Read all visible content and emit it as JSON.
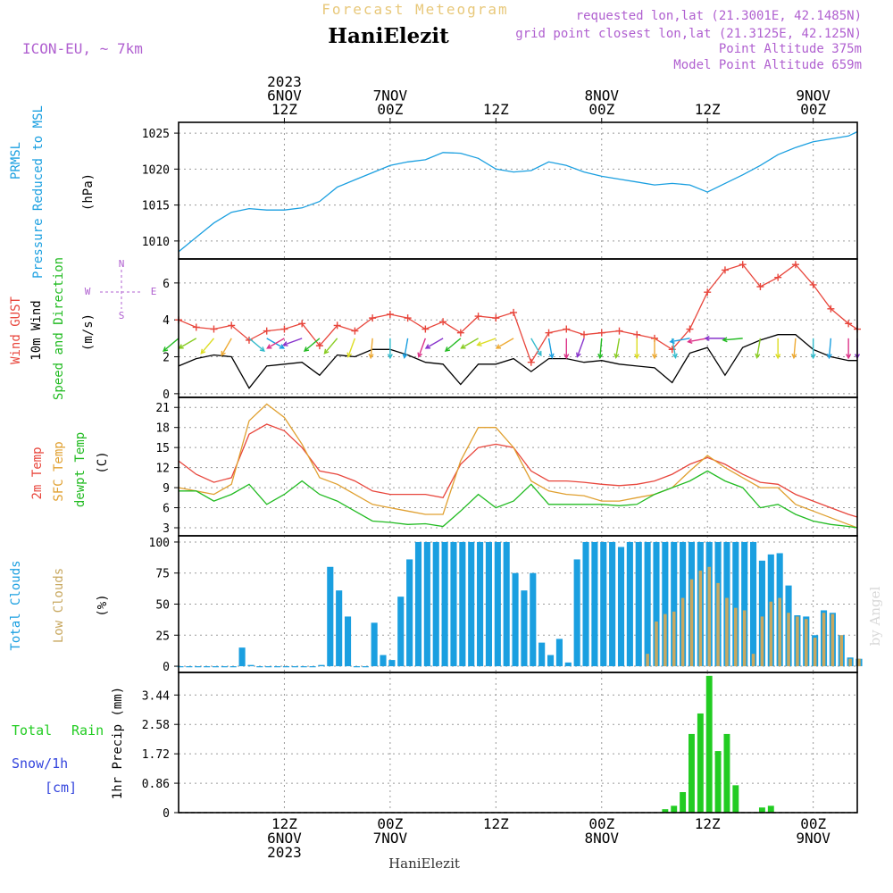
{
  "header": {
    "chart_title": "Forecast Meteogram",
    "location": "HaniElezit",
    "model": "ICON-EU, ~ 7km",
    "requested": "requested lon,lat (21.3001E, 42.1485N)",
    "grid_point": "grid point closest lon,lat (21.3125E, 42.125N)",
    "point_altitude": "Point Altitude 375m",
    "model_altitude": "Model Point Altitude 659m",
    "footer_location": "HaniElezit",
    "watermark": "by Angel"
  },
  "time_axis": {
    "top_labels": [
      {
        "lines": [
          "2023",
          "6NOV",
          "12Z"
        ],
        "hour": 12
      },
      {
        "lines": [
          "7NOV",
          "00Z"
        ],
        "hour": 24
      },
      {
        "lines": [
          "12Z"
        ],
        "hour": 36
      },
      {
        "lines": [
          "8NOV",
          "00Z"
        ],
        "hour": 48
      },
      {
        "lines": [
          "12Z"
        ],
        "hour": 60
      },
      {
        "lines": [
          "9NOV",
          "00Z"
        ],
        "hour": 72
      }
    ],
    "bottom_labels": [
      {
        "lines": [
          "12Z",
          "6NOV",
          "2023"
        ],
        "hour": 12
      },
      {
        "lines": [
          "00Z",
          "7NOV"
        ],
        "hour": 24
      },
      {
        "lines": [
          "12Z"
        ],
        "hour": 36
      },
      {
        "lines": [
          "00Z",
          "8NOV"
        ],
        "hour": 48
      },
      {
        "lines": [
          "12Z"
        ],
        "hour": 60
      },
      {
        "lines": [
          "00Z",
          "9NOV"
        ],
        "hour": 72
      }
    ],
    "start": "2023-11-06 03Z",
    "end": "2023-11-09 08Z",
    "step_hours": 1
  },
  "panel_labels": {
    "pressure": {
      "l1": "PRMSL",
      "l2": "Pressure Reduced to MSL",
      "unit": "(hPa)"
    },
    "wind": {
      "l1": "Wind GUST",
      "l2": "10m Wind",
      "l3": "Speed and Direction",
      "unit": "(m/s)",
      "compass_n": "N",
      "compass_s": "S",
      "compass_w": "W",
      "compass_e": "E"
    },
    "temp": {
      "l1": "2m Temp",
      "l2": "SFC Temp",
      "l3": "dewpt Temp",
      "unit": "(C)"
    },
    "clouds": {
      "l1": "Total Clouds",
      "l2": "Low Clouds",
      "unit": "(%)"
    },
    "precip": {
      "l1": "Total",
      "l2": "Rain",
      "l3": "Snow/1h",
      "l4": "[cm]",
      "unit": "1hr Precip (mm)"
    }
  },
  "colors": {
    "pressure": "#1a9fe0",
    "gust": "#e8463c",
    "wind": "#000000",
    "temp2m": "#e8463c",
    "sfc": "#e0a030",
    "dewpt": "#22bb22",
    "total_clouds": "#1a9fe0",
    "low_clouds": "#c8a860",
    "rain": "#22cc22",
    "snow": "#3344dd",
    "title": "#e8c87a",
    "info": "#b060d0"
  },
  "chart_data": [
    {
      "type": "line",
      "title": "PRMSL Pressure Reduced to MSL",
      "ylabel": "(hPa)",
      "ylim": [
        1007.5,
        1026.5
      ],
      "yticks": [
        1010,
        1015,
        1020,
        1025
      ],
      "x_hours_from_start": [
        0,
        2,
        4,
        6,
        8,
        10,
        12,
        14,
        16,
        18,
        20,
        22,
        24,
        26,
        28,
        30,
        32,
        34,
        36,
        38,
        40,
        42,
        44,
        46,
        48,
        50,
        52,
        54,
        56,
        58,
        60,
        62,
        64,
        66,
        68,
        70,
        72,
        74,
        76,
        77
      ],
      "series": [
        {
          "values": [
            1008.5,
            1010.5,
            1012.5,
            1014.0,
            1014.5,
            1014.3,
            1014.3,
            1014.6,
            1015.5,
            1017.5,
            1018.5,
            1019.5,
            1020.5,
            1021.0,
            1021.3,
            1022.3,
            1022.2,
            1021.5,
            1020.0,
            1019.6,
            1019.8,
            1021.0,
            1020.5,
            1019.6,
            1019.0,
            1018.6,
            1018.2,
            1017.8,
            1018.0,
            1017.8,
            1016.8,
            1018.0,
            1019.2,
            1020.5,
            1022.0,
            1023.0,
            1023.8,
            1024.2,
            1024.6,
            1025.2
          ]
        }
      ]
    },
    {
      "type": "line",
      "title": "Wind GUST / 10m Wind Speed and Direction",
      "ylabel": "(m/s)",
      "ylim": [
        -0.2,
        7.3
      ],
      "yticks": [
        0,
        2,
        4,
        6
      ],
      "x_hours_from_start": [
        0,
        2,
        4,
        6,
        8,
        10,
        12,
        14,
        16,
        18,
        20,
        22,
        24,
        26,
        28,
        30,
        32,
        34,
        36,
        38,
        40,
        42,
        44,
        46,
        48,
        50,
        52,
        54,
        56,
        58,
        60,
        62,
        64,
        66,
        68,
        70,
        72,
        74,
        76,
        77
      ],
      "series": [
        {
          "name": "Wind GUST",
          "values": [
            4.0,
            3.6,
            3.5,
            3.7,
            2.9,
            3.4,
            3.5,
            3.8,
            2.6,
            3.7,
            3.4,
            4.1,
            4.3,
            4.1,
            3.5,
            3.9,
            3.3,
            4.2,
            4.1,
            4.4,
            1.7,
            3.3,
            3.5,
            3.2,
            3.3,
            3.4,
            3.2,
            3.0,
            2.4,
            3.5,
            5.5,
            6.7,
            7.0,
            5.8,
            6.3,
            7.0,
            5.9,
            4.6,
            3.8,
            3.5
          ]
        },
        {
          "name": "10m Wind",
          "values": [
            1.5,
            1.9,
            2.1,
            2.0,
            0.3,
            1.5,
            1.6,
            1.7,
            1.0,
            2.1,
            2.0,
            2.4,
            2.4,
            2.1,
            1.7,
            1.6,
            0.5,
            1.6,
            1.6,
            1.9,
            1.2,
            1.9,
            1.9,
            1.7,
            1.8,
            1.6,
            1.5,
            1.4,
            0.6,
            2.2,
            2.5,
            1.0,
            2.5,
            2.9,
            3.2,
            3.2,
            2.4,
            2.0,
            1.8,
            1.8
          ]
        }
      ]
    },
    {
      "type": "line",
      "title": "2m Temp / SFC Temp / dewpt Temp",
      "ylabel": "(C)",
      "ylim": [
        1.8,
        22.5
      ],
      "yticks": [
        3,
        6,
        9,
        12,
        15,
        18,
        21
      ],
      "x_hours_from_start": [
        0,
        2,
        4,
        6,
        8,
        10,
        12,
        14,
        16,
        18,
        20,
        22,
        24,
        26,
        28,
        30,
        32,
        34,
        36,
        38,
        40,
        42,
        44,
        46,
        48,
        50,
        52,
        54,
        56,
        58,
        60,
        62,
        64,
        66,
        68,
        70,
        72,
        74,
        76,
        77
      ],
      "series": [
        {
          "name": "2m Temp",
          "values": [
            13.0,
            11.0,
            9.8,
            10.5,
            17.0,
            18.5,
            17.5,
            15.0,
            11.5,
            11.0,
            10.0,
            8.5,
            8.0,
            8.0,
            8.0,
            7.5,
            12.5,
            15.0,
            15.5,
            15.0,
            11.5,
            10.0,
            10.0,
            9.8,
            9.5,
            9.3,
            9.5,
            10.0,
            11.0,
            12.5,
            13.5,
            12.5,
            11.0,
            9.8,
            9.5,
            8.0,
            7.0,
            6.0,
            5.0,
            4.6
          ]
        },
        {
          "name": "SFC Temp",
          "values": [
            9.0,
            8.5,
            8.0,
            9.5,
            19.0,
            21.5,
            19.5,
            15.5,
            10.5,
            9.5,
            8.0,
            6.5,
            6.0,
            5.5,
            5.0,
            5.0,
            13.0,
            18.0,
            18.0,
            15.0,
            10.0,
            8.5,
            8.0,
            7.8,
            7.0,
            7.0,
            7.5,
            8.0,
            9.0,
            11.5,
            13.8,
            12.0,
            10.5,
            9.0,
            9.0,
            6.5,
            5.5,
            4.5,
            3.5,
            3.0
          ]
        },
        {
          "name": "dewpt Temp",
          "values": [
            8.5,
            8.5,
            7.0,
            8.0,
            9.5,
            6.5,
            8.0,
            10.0,
            8.0,
            7.0,
            5.5,
            4.0,
            3.8,
            3.5,
            3.6,
            3.2,
            5.5,
            8.0,
            6.0,
            7.0,
            9.5,
            6.5,
            6.5,
            6.5,
            6.5,
            6.3,
            6.5,
            8.0,
            9.0,
            10.0,
            11.5,
            10.0,
            9.0,
            6.0,
            6.5,
            5.0,
            4.0,
            3.5,
            3.2,
            3.0
          ]
        }
      ]
    },
    {
      "type": "bar",
      "title": "Total Clouds / Low Clouds",
      "ylabel": "(%)",
      "ylim": [
        -5,
        105
      ],
      "yticks": [
        0,
        25,
        50,
        75,
        100
      ],
      "x_hours_from_start": [
        0,
        1,
        2,
        3,
        4,
        5,
        6,
        7,
        8,
        9,
        10,
        11,
        12,
        13,
        14,
        15,
        16,
        17,
        18,
        19,
        20,
        21,
        22,
        23,
        24,
        25,
        26,
        27,
        28,
        29,
        30,
        31,
        32,
        33,
        34,
        35,
        36,
        37,
        38,
        39,
        40,
        41,
        42,
        43,
        44,
        45,
        46,
        47,
        48,
        49,
        50,
        51,
        52,
        53,
        54,
        55,
        56,
        57,
        58,
        59,
        60,
        61,
        62,
        63,
        64,
        65,
        66,
        67,
        68,
        69,
        70,
        71,
        72,
        73,
        74,
        75,
        76,
        77
      ],
      "series": [
        {
          "name": "Total Clouds",
          "values": [
            0,
            0,
            0,
            0,
            0,
            0,
            0,
            15,
            1,
            0,
            0,
            0,
            0,
            0,
            0,
            0,
            1,
            80,
            61,
            40,
            0,
            0,
            35,
            9,
            5,
            56,
            86,
            100,
            100,
            100,
            100,
            100,
            100,
            100,
            100,
            100,
            100,
            100,
            75,
            61,
            75,
            19,
            9,
            22,
            3,
            86,
            100,
            100,
            100,
            100,
            96,
            100,
            100,
            100,
            100,
            100,
            100,
            100,
            100,
            100,
            100,
            100,
            100,
            100,
            100,
            100,
            85,
            90,
            91,
            65,
            41,
            40,
            25,
            45,
            43,
            25,
            7,
            6
          ]
        },
        {
          "name": "Low Clouds",
          "values": [
            0,
            0,
            0,
            0,
            0,
            0,
            0,
            0,
            0,
            0,
            0,
            0,
            0,
            0,
            0,
            0,
            0,
            0,
            0,
            0,
            0,
            0,
            0,
            0,
            0,
            0,
            0,
            0,
            0,
            0,
            0,
            0,
            0,
            0,
            0,
            0,
            0,
            0,
            0,
            0,
            0,
            0,
            0,
            0,
            0,
            0,
            0,
            0,
            0,
            0,
            0,
            0,
            0,
            10,
            36,
            42,
            44,
            55,
            70,
            77,
            80,
            67,
            55,
            47,
            45,
            10,
            40,
            52,
            55,
            43,
            40,
            38,
            23,
            43,
            42,
            25,
            6,
            6
          ]
        }
      ]
    },
    {
      "type": "bar",
      "title": "Total Rain Snow/1h",
      "ylabel": "1hr Precip (mm)",
      "ylim": [
        0,
        4.1
      ],
      "yticks": [
        0,
        0.86,
        1.72,
        2.58,
        3.44
      ],
      "x_hours_from_start": [
        55,
        56,
        57,
        58,
        59,
        60,
        61,
        62,
        63,
        66,
        67
      ],
      "series": [
        {
          "name": "Rain",
          "values": [
            0.1,
            0.2,
            0.6,
            2.3,
            2.9,
            4.0,
            1.8,
            2.3,
            0.8,
            0.15,
            0.2
          ]
        },
        {
          "name": "Snow/1h",
          "values": [
            0,
            0,
            0,
            0,
            0,
            0,
            0,
            0,
            0,
            0,
            0
          ]
        }
      ]
    }
  ]
}
